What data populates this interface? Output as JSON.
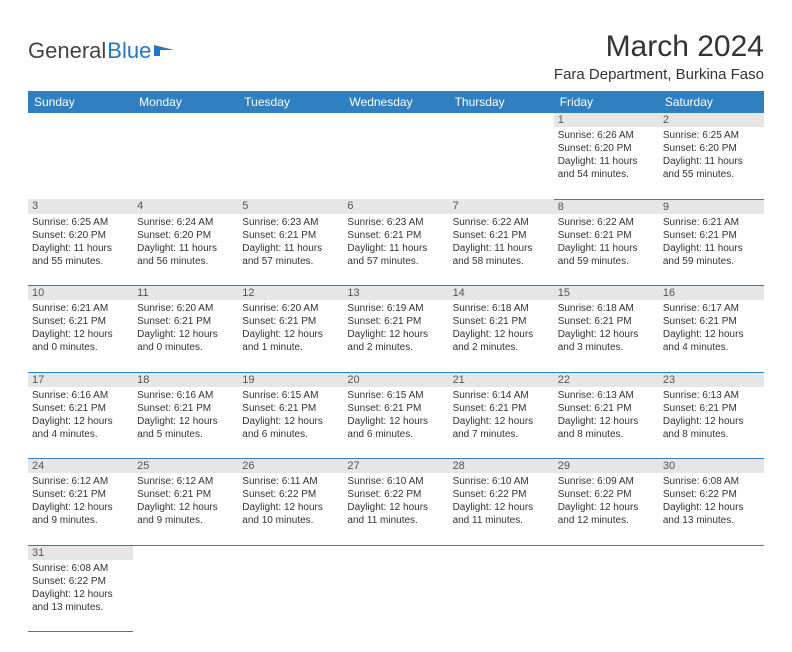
{
  "logo": {
    "text1": "General",
    "text2": "Blue"
  },
  "title": "March 2024",
  "location": "Fara Department, Burkina Faso",
  "colors": {
    "header_bg": "#2f7fc1",
    "header_text": "#ffffff",
    "daynum_bg": "#e6e6e6",
    "border": "#2f7fc1",
    "logo_blue": "#2176c1"
  },
  "weekdays": [
    "Sunday",
    "Monday",
    "Tuesday",
    "Wednesday",
    "Thursday",
    "Friday",
    "Saturday"
  ],
  "weeks": [
    [
      null,
      null,
      null,
      null,
      null,
      {
        "n": "1",
        "sr": "Sunrise: 6:26 AM",
        "ss": "Sunset: 6:20 PM",
        "dl": "Daylight: 11 hours and 54 minutes."
      },
      {
        "n": "2",
        "sr": "Sunrise: 6:25 AM",
        "ss": "Sunset: 6:20 PM",
        "dl": "Daylight: 11 hours and 55 minutes."
      }
    ],
    [
      {
        "n": "3",
        "sr": "Sunrise: 6:25 AM",
        "ss": "Sunset: 6:20 PM",
        "dl": "Daylight: 11 hours and 55 minutes."
      },
      {
        "n": "4",
        "sr": "Sunrise: 6:24 AM",
        "ss": "Sunset: 6:20 PM",
        "dl": "Daylight: 11 hours and 56 minutes."
      },
      {
        "n": "5",
        "sr": "Sunrise: 6:23 AM",
        "ss": "Sunset: 6:21 PM",
        "dl": "Daylight: 11 hours and 57 minutes."
      },
      {
        "n": "6",
        "sr": "Sunrise: 6:23 AM",
        "ss": "Sunset: 6:21 PM",
        "dl": "Daylight: 11 hours and 57 minutes."
      },
      {
        "n": "7",
        "sr": "Sunrise: 6:22 AM",
        "ss": "Sunset: 6:21 PM",
        "dl": "Daylight: 11 hours and 58 minutes."
      },
      {
        "n": "8",
        "sr": "Sunrise: 6:22 AM",
        "ss": "Sunset: 6:21 PM",
        "dl": "Daylight: 11 hours and 59 minutes."
      },
      {
        "n": "9",
        "sr": "Sunrise: 6:21 AM",
        "ss": "Sunset: 6:21 PM",
        "dl": "Daylight: 11 hours and 59 minutes."
      }
    ],
    [
      {
        "n": "10",
        "sr": "Sunrise: 6:21 AM",
        "ss": "Sunset: 6:21 PM",
        "dl": "Daylight: 12 hours and 0 minutes."
      },
      {
        "n": "11",
        "sr": "Sunrise: 6:20 AM",
        "ss": "Sunset: 6:21 PM",
        "dl": "Daylight: 12 hours and 0 minutes."
      },
      {
        "n": "12",
        "sr": "Sunrise: 6:20 AM",
        "ss": "Sunset: 6:21 PM",
        "dl": "Daylight: 12 hours and 1 minute."
      },
      {
        "n": "13",
        "sr": "Sunrise: 6:19 AM",
        "ss": "Sunset: 6:21 PM",
        "dl": "Daylight: 12 hours and 2 minutes."
      },
      {
        "n": "14",
        "sr": "Sunrise: 6:18 AM",
        "ss": "Sunset: 6:21 PM",
        "dl": "Daylight: 12 hours and 2 minutes."
      },
      {
        "n": "15",
        "sr": "Sunrise: 6:18 AM",
        "ss": "Sunset: 6:21 PM",
        "dl": "Daylight: 12 hours and 3 minutes."
      },
      {
        "n": "16",
        "sr": "Sunrise: 6:17 AM",
        "ss": "Sunset: 6:21 PM",
        "dl": "Daylight: 12 hours and 4 minutes."
      }
    ],
    [
      {
        "n": "17",
        "sr": "Sunrise: 6:16 AM",
        "ss": "Sunset: 6:21 PM",
        "dl": "Daylight: 12 hours and 4 minutes."
      },
      {
        "n": "18",
        "sr": "Sunrise: 6:16 AM",
        "ss": "Sunset: 6:21 PM",
        "dl": "Daylight: 12 hours and 5 minutes."
      },
      {
        "n": "19",
        "sr": "Sunrise: 6:15 AM",
        "ss": "Sunset: 6:21 PM",
        "dl": "Daylight: 12 hours and 6 minutes."
      },
      {
        "n": "20",
        "sr": "Sunrise: 6:15 AM",
        "ss": "Sunset: 6:21 PM",
        "dl": "Daylight: 12 hours and 6 minutes."
      },
      {
        "n": "21",
        "sr": "Sunrise: 6:14 AM",
        "ss": "Sunset: 6:21 PM",
        "dl": "Daylight: 12 hours and 7 minutes."
      },
      {
        "n": "22",
        "sr": "Sunrise: 6:13 AM",
        "ss": "Sunset: 6:21 PM",
        "dl": "Daylight: 12 hours and 8 minutes."
      },
      {
        "n": "23",
        "sr": "Sunrise: 6:13 AM",
        "ss": "Sunset: 6:21 PM",
        "dl": "Daylight: 12 hours and 8 minutes."
      }
    ],
    [
      {
        "n": "24",
        "sr": "Sunrise: 6:12 AM",
        "ss": "Sunset: 6:21 PM",
        "dl": "Daylight: 12 hours and 9 minutes."
      },
      {
        "n": "25",
        "sr": "Sunrise: 6:12 AM",
        "ss": "Sunset: 6:21 PM",
        "dl": "Daylight: 12 hours and 9 minutes."
      },
      {
        "n": "26",
        "sr": "Sunrise: 6:11 AM",
        "ss": "Sunset: 6:22 PM",
        "dl": "Daylight: 12 hours and 10 minutes."
      },
      {
        "n": "27",
        "sr": "Sunrise: 6:10 AM",
        "ss": "Sunset: 6:22 PM",
        "dl": "Daylight: 12 hours and 11 minutes."
      },
      {
        "n": "28",
        "sr": "Sunrise: 6:10 AM",
        "ss": "Sunset: 6:22 PM",
        "dl": "Daylight: 12 hours and 11 minutes."
      },
      {
        "n": "29",
        "sr": "Sunrise: 6:09 AM",
        "ss": "Sunset: 6:22 PM",
        "dl": "Daylight: 12 hours and 12 minutes."
      },
      {
        "n": "30",
        "sr": "Sunrise: 6:08 AM",
        "ss": "Sunset: 6:22 PM",
        "dl": "Daylight: 12 hours and 13 minutes."
      }
    ],
    [
      {
        "n": "31",
        "sr": "Sunrise: 6:08 AM",
        "ss": "Sunset: 6:22 PM",
        "dl": "Daylight: 12 hours and 13 minutes."
      },
      null,
      null,
      null,
      null,
      null,
      null
    ]
  ]
}
